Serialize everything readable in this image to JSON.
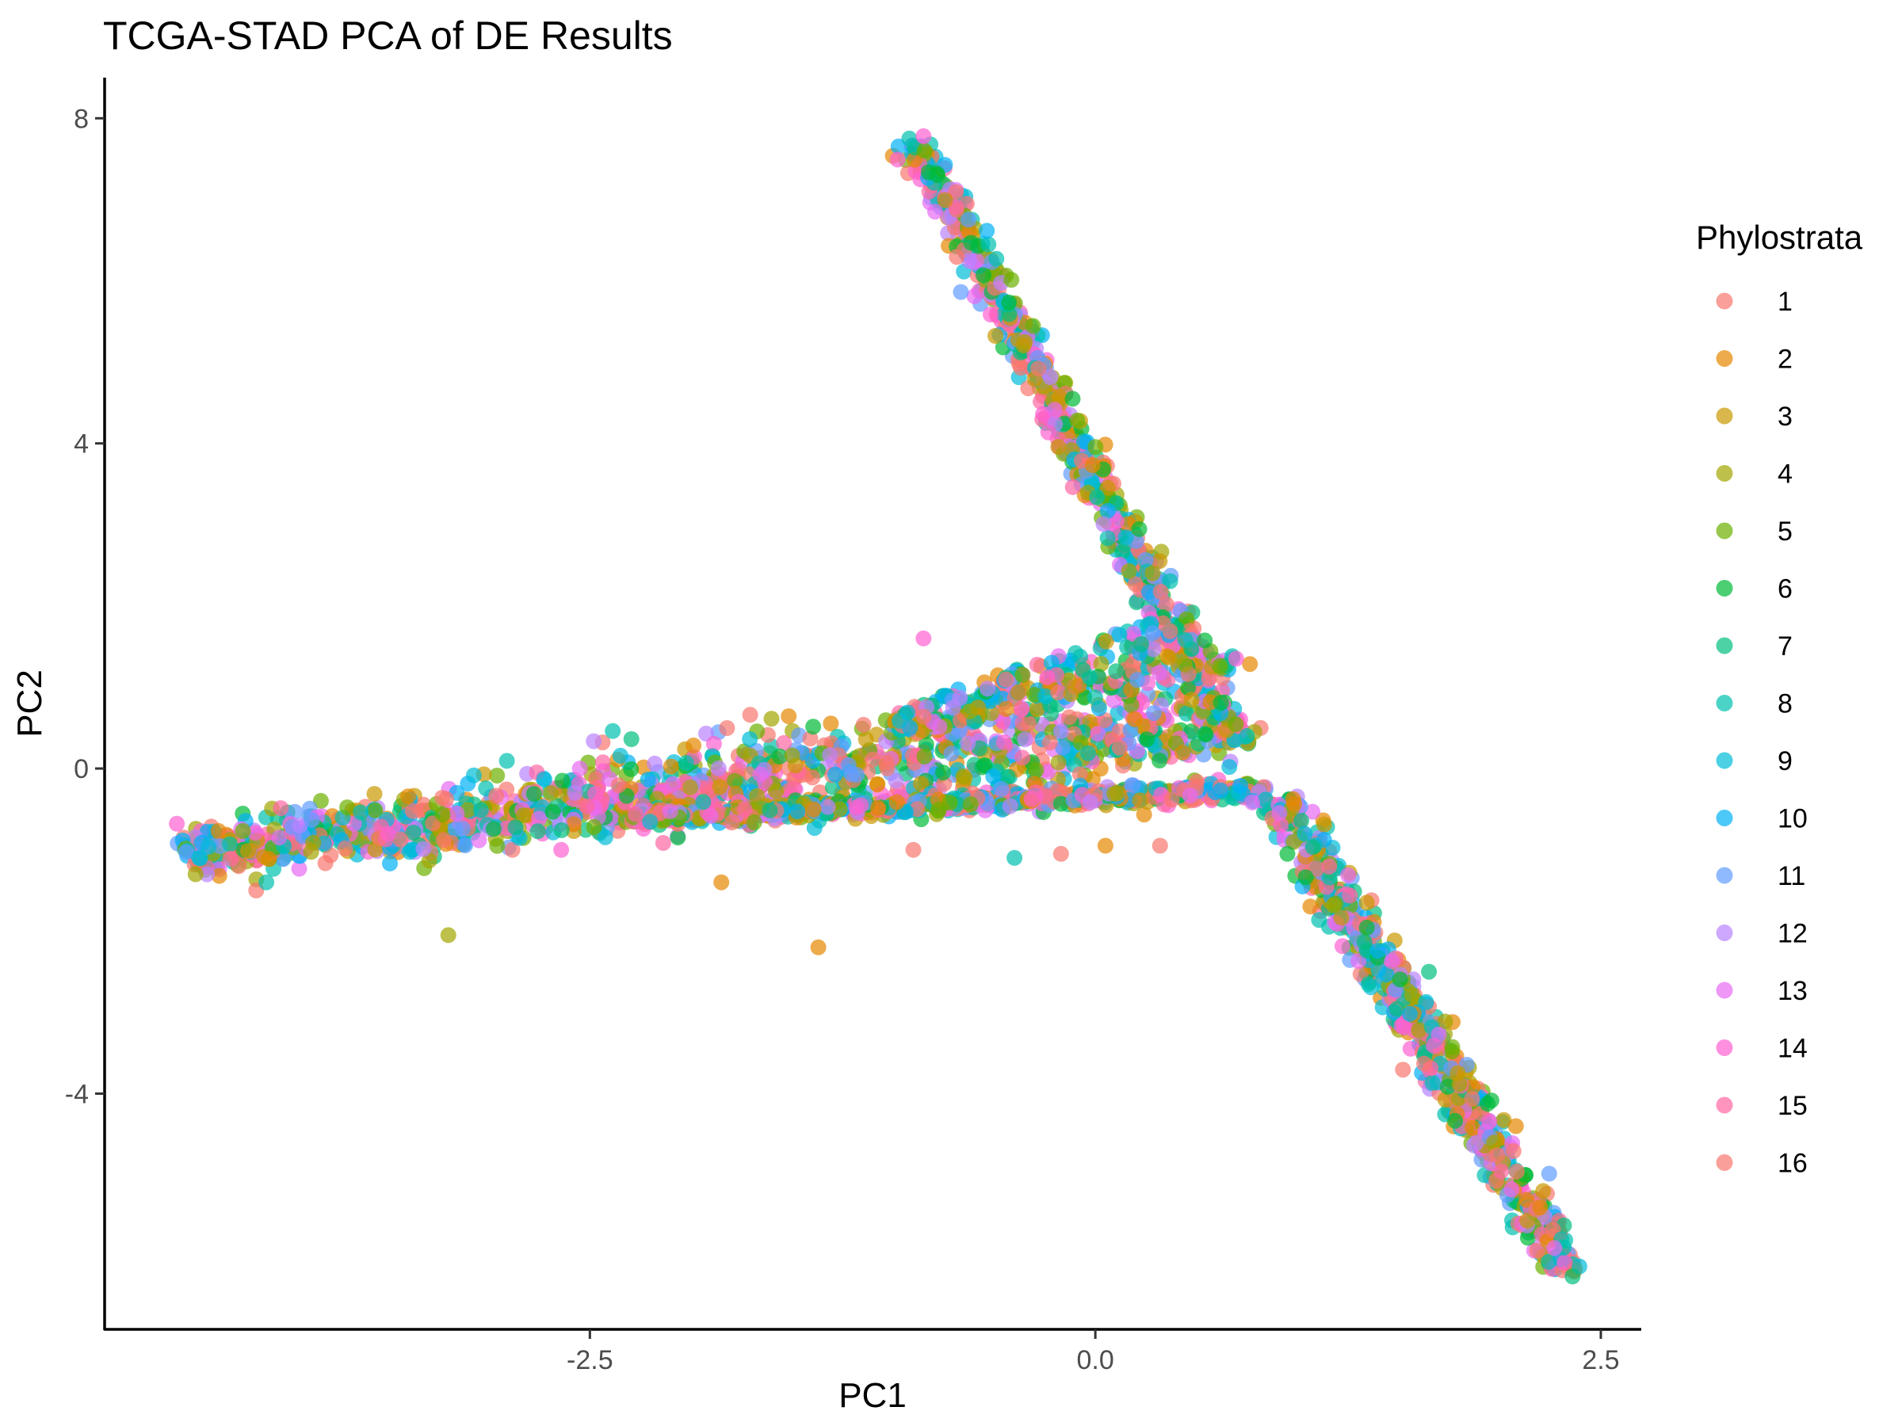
{
  "chart_data": {
    "type": "scatter",
    "title": "TCGA-STAD PCA of DE Results",
    "xlabel": "PC1",
    "ylabel": "PC2",
    "xlim": [
      -4.9,
      2.7
    ],
    "ylim": [
      -6.9,
      8.5
    ],
    "x_ticks": [
      {
        "value": -2.5,
        "label": "-2.5"
      },
      {
        "value": 0.0,
        "label": "0.0"
      },
      {
        "value": 2.5,
        "label": "2.5"
      }
    ],
    "y_ticks": [
      {
        "value": -4,
        "label": "-4"
      },
      {
        "value": 0,
        "label": "0"
      },
      {
        "value": 4,
        "label": "4"
      },
      {
        "value": 8,
        "label": "8"
      }
    ],
    "grid": false,
    "legend": {
      "title": "Phylostrata",
      "placement": "right"
    },
    "point_opacity": 0.7,
    "series": [
      {
        "name": "1",
        "color": "#F8766D"
      },
      {
        "name": "2",
        "color": "#E58700"
      },
      {
        "name": "3",
        "color": "#C99800"
      },
      {
        "name": "4",
        "color": "#A3A500"
      },
      {
        "name": "5",
        "color": "#6BB100"
      },
      {
        "name": "6",
        "color": "#00BA38"
      },
      {
        "name": "7",
        "color": "#00BF7D"
      },
      {
        "name": "8",
        "color": "#00C0AF"
      },
      {
        "name": "9",
        "color": "#00BCD8"
      },
      {
        "name": "10",
        "color": "#00B0F6"
      },
      {
        "name": "11",
        "color": "#619CFF"
      },
      {
        "name": "12",
        "color": "#B983FF"
      },
      {
        "name": "13",
        "color": "#E76BF3"
      },
      {
        "name": "14",
        "color": "#FD61D1"
      },
      {
        "name": "15",
        "color": "#FF67A4"
      },
      {
        "name": "16",
        "color": "#F8766D"
      }
    ],
    "point_clusters": [
      {
        "kind": "segment",
        "from": [
          -4.5,
          -1.05
        ],
        "to": [
          0.7,
          0.6
        ],
        "spread": 0.55,
        "count": 1300
      },
      {
        "kind": "segment",
        "from": [
          -2.3,
          -0.6
        ],
        "to": [
          0.85,
          -0.25
        ],
        "spread": 0.12,
        "count": 650
      },
      {
        "kind": "segment",
        "from": [
          -0.9,
          7.7
        ],
        "to": [
          0.7,
          0.3
        ],
        "spread": 0.12,
        "count": 650
      },
      {
        "kind": "segment",
        "from": [
          0.9,
          -0.35
        ],
        "to": [
          2.35,
          -6.2
        ],
        "spread": 0.14,
        "count": 650
      },
      {
        "kind": "wedge",
        "from": [
          -1.0,
          0.5
        ],
        "to": [
          0.55,
          1.6
        ],
        "spread": 0.4,
        "count": 300
      }
    ],
    "outliers": [
      {
        "x": -3.2,
        "y": -2.05,
        "series": "4"
      },
      {
        "x": -1.85,
        "y": -1.4,
        "series": "2"
      },
      {
        "x": -1.37,
        "y": -2.2,
        "series": "2"
      },
      {
        "x": -4.15,
        "y": -1.5,
        "series": "1"
      },
      {
        "x": -4.1,
        "y": -1.4,
        "series": "8"
      },
      {
        "x": -4.45,
        "y": -1.3,
        "series": "4"
      },
      {
        "x": -0.9,
        "y": -1.0,
        "series": "1"
      },
      {
        "x": -0.4,
        "y": -1.1,
        "series": "8"
      },
      {
        "x": -0.17,
        "y": -1.05,
        "series": "1"
      },
      {
        "x": 0.05,
        "y": -0.95,
        "series": "2"
      },
      {
        "x": 0.32,
        "y": -0.95,
        "series": "1"
      },
      {
        "x": -0.85,
        "y": 1.6,
        "series": "14"
      },
      {
        "x": 2.27,
        "y": -5.9,
        "series": "13"
      },
      {
        "x": 2.36,
        "y": -6.25,
        "series": "7"
      },
      {
        "x": 2.08,
        "y": -4.4,
        "series": "2"
      },
      {
        "x": 2.2,
        "y": -5.4,
        "series": "2"
      },
      {
        "x": 1.65,
        "y": -2.5,
        "series": "7"
      },
      {
        "x": 0.75,
        "y": 0.4,
        "series": "8"
      },
      {
        "x": 0.95,
        "y": -1.05,
        "series": "6"
      },
      {
        "x": -0.92,
        "y": 7.75,
        "series": "8"
      },
      {
        "x": -0.85,
        "y": 7.78,
        "series": "14"
      },
      {
        "x": -0.78,
        "y": 7.3,
        "series": "6"
      }
    ]
  }
}
